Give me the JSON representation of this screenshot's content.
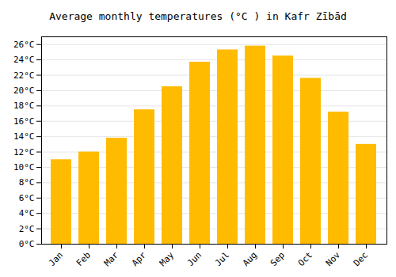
{
  "chart_data": {
    "type": "bar",
    "title": "Average monthly temperatures (°C ) in Kafr Zībād",
    "categories": [
      "Jan",
      "Feb",
      "Mar",
      "Apr",
      "May",
      "Jun",
      "Jul",
      "Aug",
      "Sep",
      "Oct",
      "Nov",
      "Dec"
    ],
    "values": [
      11.0,
      12.0,
      13.8,
      17.5,
      20.5,
      23.7,
      25.3,
      25.8,
      24.5,
      21.6,
      17.2,
      13.0
    ],
    "color": "#FFBB00",
    "ylim": [
      0,
      27
    ],
    "yticks": [
      {
        "value": 0,
        "label": "0°C"
      },
      {
        "value": 2,
        "label": "2°C"
      },
      {
        "value": 4,
        "label": "4°C"
      },
      {
        "value": 6,
        "label": "6°C"
      },
      {
        "value": 8,
        "label": "8°C"
      },
      {
        "value": 10,
        "label": "10°C"
      },
      {
        "value": 12,
        "label": "12°C"
      },
      {
        "value": 14,
        "label": "14°C"
      },
      {
        "value": 16,
        "label": "16°C"
      },
      {
        "value": 18,
        "label": "18°C"
      },
      {
        "value": 20,
        "label": "20°C"
      },
      {
        "value": 22,
        "label": "22°C"
      },
      {
        "value": 24,
        "label": "24°C"
      },
      {
        "value": 26,
        "label": "26°C"
      }
    ],
    "grid": true
  }
}
